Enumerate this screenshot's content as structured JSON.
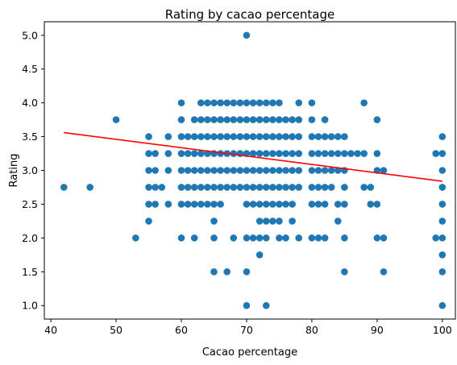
{
  "chart_data": {
    "type": "scatter",
    "title": "Rating by cacao percentage",
    "xlabel": "Cacao percentage",
    "ylabel": "Rating",
    "xlim": [
      39,
      102
    ],
    "ylim": [
      0.8,
      5.2
    ],
    "xticks": [
      40,
      50,
      60,
      70,
      80,
      90,
      100
    ],
    "xtick_labels": [
      "40",
      "50",
      "60",
      "70",
      "80",
      "90",
      "100"
    ],
    "yticks": [
      1.0,
      1.5,
      2.0,
      2.5,
      3.0,
      3.5,
      4.0,
      4.5,
      5.0
    ],
    "ytick_labels": [
      "1.0",
      "1.5",
      "2.0",
      "2.5",
      "3.0",
      "3.5",
      "4.0",
      "4.5",
      "5.0"
    ],
    "grid": false,
    "colors": {
      "points": "#1f77b4",
      "trend": "#ff0000"
    },
    "trend_line": {
      "x": [
        42,
        100
      ],
      "y": [
        3.56,
        2.84
      ]
    },
    "points": [
      [
        42,
        2.75
      ],
      [
        46,
        2.75
      ],
      [
        50,
        3.75
      ],
      [
        53,
        2.0
      ],
      [
        55,
        2.25
      ],
      [
        55,
        2.5
      ],
      [
        55,
        2.75
      ],
      [
        55,
        3.0
      ],
      [
        55,
        3.25
      ],
      [
        55,
        3.5
      ],
      [
        56,
        2.5
      ],
      [
        56,
        2.75
      ],
      [
        56,
        3.0
      ],
      [
        56,
        3.25
      ],
      [
        57,
        2.75
      ],
      [
        58,
        2.5
      ],
      [
        58,
        3.0
      ],
      [
        58,
        3.25
      ],
      [
        58,
        3.5
      ],
      [
        60,
        2.0
      ],
      [
        60,
        2.5
      ],
      [
        60,
        2.75
      ],
      [
        60,
        3.0
      ],
      [
        60,
        3.25
      ],
      [
        60,
        3.5
      ],
      [
        60,
        3.75
      ],
      [
        60,
        4.0
      ],
      [
        61,
        2.5
      ],
      [
        61,
        2.75
      ],
      [
        61,
        3.0
      ],
      [
        61,
        3.25
      ],
      [
        61,
        3.5
      ],
      [
        62,
        2.0
      ],
      [
        62,
        2.5
      ],
      [
        62,
        2.75
      ],
      [
        62,
        3.0
      ],
      [
        62,
        3.25
      ],
      [
        62,
        3.5
      ],
      [
        62,
        3.75
      ],
      [
        63,
        2.5
      ],
      [
        63,
        2.75
      ],
      [
        63,
        3.0
      ],
      [
        63,
        3.25
      ],
      [
        63,
        3.5
      ],
      [
        63,
        3.75
      ],
      [
        63,
        4.0
      ],
      [
        64,
        2.5
      ],
      [
        64,
        2.75
      ],
      [
        64,
        3.0
      ],
      [
        64,
        3.25
      ],
      [
        64,
        3.5
      ],
      [
        64,
        3.75
      ],
      [
        64,
        4.0
      ],
      [
        65,
        1.5
      ],
      [
        65,
        2.0
      ],
      [
        65,
        2.25
      ],
      [
        65,
        2.5
      ],
      [
        65,
        2.75
      ],
      [
        65,
        3.0
      ],
      [
        65,
        3.25
      ],
      [
        65,
        3.5
      ],
      [
        65,
        3.75
      ],
      [
        65,
        4.0
      ],
      [
        66,
        2.5
      ],
      [
        66,
        2.75
      ],
      [
        66,
        3.0
      ],
      [
        66,
        3.25
      ],
      [
        66,
        3.5
      ],
      [
        66,
        3.75
      ],
      [
        66,
        4.0
      ],
      [
        67,
        1.5
      ],
      [
        67,
        2.75
      ],
      [
        67,
        3.0
      ],
      [
        67,
        3.25
      ],
      [
        67,
        3.5
      ],
      [
        67,
        3.75
      ],
      [
        67,
        4.0
      ],
      [
        68,
        2.0
      ],
      [
        68,
        2.75
      ],
      [
        68,
        3.0
      ],
      [
        68,
        3.25
      ],
      [
        68,
        3.5
      ],
      [
        68,
        3.75
      ],
      [
        68,
        4.0
      ],
      [
        69,
        2.75
      ],
      [
        69,
        3.0
      ],
      [
        69,
        3.25
      ],
      [
        69,
        3.5
      ],
      [
        69,
        3.75
      ],
      [
        69,
        4.0
      ],
      [
        70,
        1.0
      ],
      [
        70,
        1.5
      ],
      [
        70,
        2.0
      ],
      [
        70,
        2.5
      ],
      [
        70,
        2.75
      ],
      [
        70,
        3.0
      ],
      [
        70,
        3.25
      ],
      [
        70,
        3.5
      ],
      [
        70,
        3.75
      ],
      [
        70,
        4.0
      ],
      [
        70,
        5.0
      ],
      [
        71,
        2.0
      ],
      [
        71,
        2.5
      ],
      [
        71,
        2.75
      ],
      [
        71,
        3.0
      ],
      [
        71,
        3.25
      ],
      [
        71,
        3.5
      ],
      [
        71,
        3.75
      ],
      [
        71,
        4.0
      ],
      [
        72,
        1.75
      ],
      [
        72,
        2.0
      ],
      [
        72,
        2.25
      ],
      [
        72,
        2.5
      ],
      [
        72,
        2.75
      ],
      [
        72,
        3.0
      ],
      [
        72,
        3.25
      ],
      [
        72,
        3.5
      ],
      [
        72,
        3.75
      ],
      [
        72,
        4.0
      ],
      [
        73,
        1.0
      ],
      [
        73,
        2.0
      ],
      [
        73,
        2.25
      ],
      [
        73,
        2.5
      ],
      [
        73,
        2.75
      ],
      [
        73,
        3.0
      ],
      [
        73,
        3.25
      ],
      [
        73,
        3.5
      ],
      [
        73,
        3.75
      ],
      [
        73,
        4.0
      ],
      [
        74,
        2.25
      ],
      [
        74,
        2.5
      ],
      [
        74,
        2.75
      ],
      [
        74,
        3.0
      ],
      [
        74,
        3.25
      ],
      [
        74,
        3.5
      ],
      [
        74,
        3.75
      ],
      [
        74,
        4.0
      ],
      [
        75,
        2.0
      ],
      [
        75,
        2.25
      ],
      [
        75,
        2.5
      ],
      [
        75,
        2.75
      ],
      [
        75,
        3.0
      ],
      [
        75,
        3.25
      ],
      [
        75,
        3.5
      ],
      [
        75,
        3.75
      ],
      [
        75,
        4.0
      ],
      [
        76,
        2.0
      ],
      [
        76,
        2.5
      ],
      [
        76,
        2.75
      ],
      [
        76,
        3.0
      ],
      [
        76,
        3.25
      ],
      [
        76,
        3.5
      ],
      [
        76,
        3.75
      ],
      [
        77,
        2.25
      ],
      [
        77,
        2.5
      ],
      [
        77,
        2.75
      ],
      [
        77,
        3.0
      ],
      [
        77,
        3.25
      ],
      [
        77,
        3.5
      ],
      [
        77,
        3.75
      ],
      [
        78,
        2.0
      ],
      [
        78,
        2.75
      ],
      [
        78,
        3.0
      ],
      [
        78,
        3.25
      ],
      [
        78,
        3.5
      ],
      [
        78,
        3.75
      ],
      [
        78,
        4.0
      ],
      [
        80,
        2.0
      ],
      [
        80,
        2.5
      ],
      [
        80,
        2.75
      ],
      [
        80,
        3.0
      ],
      [
        80,
        3.25
      ],
      [
        80,
        3.5
      ],
      [
        80,
        3.75
      ],
      [
        80,
        4.0
      ],
      [
        81,
        2.0
      ],
      [
        81,
        2.5
      ],
      [
        81,
        2.75
      ],
      [
        81,
        3.0
      ],
      [
        81,
        3.25
      ],
      [
        81,
        3.5
      ],
      [
        82,
        2.0
      ],
      [
        82,
        2.5
      ],
      [
        82,
        2.75
      ],
      [
        82,
        3.0
      ],
      [
        82,
        3.25
      ],
      [
        82,
        3.5
      ],
      [
        82,
        3.75
      ],
      [
        83,
        2.75
      ],
      [
        83,
        3.0
      ],
      [
        83,
        3.25
      ],
      [
        83,
        3.5
      ],
      [
        84,
        2.25
      ],
      [
        84,
        2.5
      ],
      [
        84,
        3.0
      ],
      [
        84,
        3.25
      ],
      [
        84,
        3.5
      ],
      [
        85,
        1.5
      ],
      [
        85,
        2.0
      ],
      [
        85,
        2.5
      ],
      [
        85,
        2.75
      ],
      [
        85,
        3.0
      ],
      [
        85,
        3.25
      ],
      [
        85,
        3.5
      ],
      [
        86,
        3.25
      ],
      [
        87,
        3.25
      ],
      [
        88,
        2.75
      ],
      [
        88,
        3.25
      ],
      [
        88,
        4.0
      ],
      [
        89,
        2.5
      ],
      [
        89,
        2.75
      ],
      [
        90,
        2.0
      ],
      [
        90,
        2.5
      ],
      [
        90,
        3.0
      ],
      [
        90,
        3.25
      ],
      [
        90,
        3.75
      ],
      [
        91,
        1.5
      ],
      [
        91,
        2.0
      ],
      [
        91,
        3.0
      ],
      [
        99,
        2.0
      ],
      [
        99,
        3.25
      ],
      [
        100,
        1.0
      ],
      [
        100,
        1.5
      ],
      [
        100,
        1.75
      ],
      [
        100,
        2.0
      ],
      [
        100,
        2.25
      ],
      [
        100,
        2.5
      ],
      [
        100,
        2.75
      ],
      [
        100,
        3.0
      ],
      [
        100,
        3.25
      ],
      [
        100,
        3.5
      ]
    ]
  }
}
